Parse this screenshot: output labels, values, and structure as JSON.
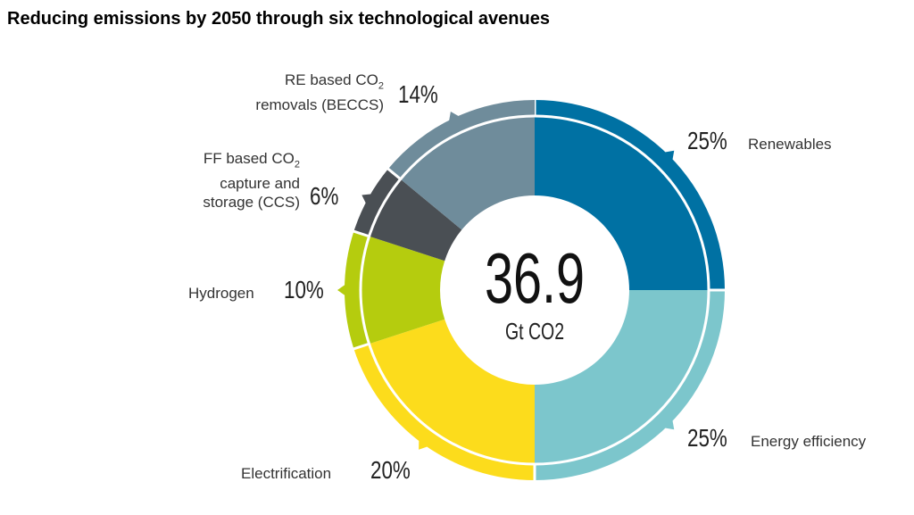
{
  "title": "Reducing emissions by 2050 through six technological avenues",
  "chart_data": {
    "type": "pie",
    "title": "Reducing emissions by 2050 through six technological avenues",
    "center_value": "36.9",
    "center_unit": "Gt CO2",
    "slices": [
      {
        "label": "Renewables",
        "value": 25,
        "pct_label": "25%",
        "color": "#0071a3"
      },
      {
        "label": "Energy efficiency",
        "value": 25,
        "pct_label": "25%",
        "color": "#7cc6cc"
      },
      {
        "label": "Electrification",
        "value": 20,
        "pct_label": "20%",
        "color": "#fcdc1c"
      },
      {
        "label": "Hydrogen",
        "value": 10,
        "pct_label": "10%",
        "color": "#b5cc0e"
      },
      {
        "label": "FF based CO2 capture and storage (CCS)",
        "value": 6,
        "pct_label": "6%",
        "color": "#4a4f54"
      },
      {
        "label": "RE based CO2 removals (BECCS)",
        "value": 14,
        "pct_label": "14%",
        "color": "#6f8c9b"
      }
    ]
  }
}
